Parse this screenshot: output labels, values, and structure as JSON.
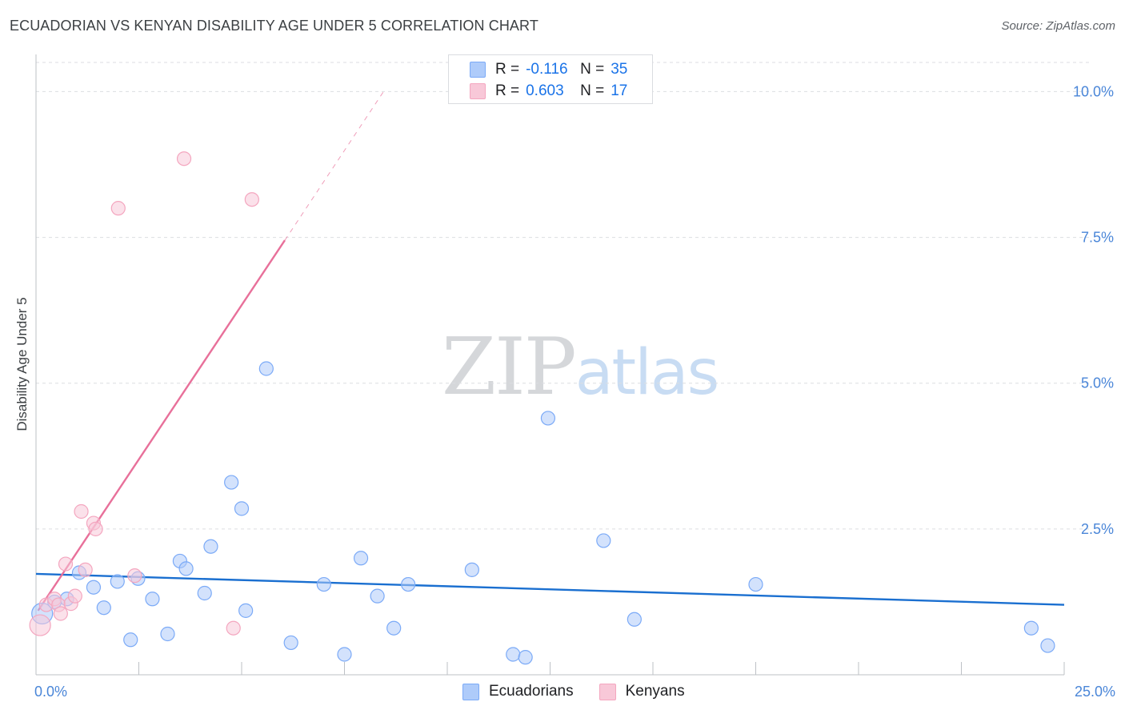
{
  "header": {
    "title": "ECUADORIAN VS KENYAN DISABILITY AGE UNDER 5 CORRELATION CHART",
    "source": "Source: ZipAtlas.com"
  },
  "watermark": {
    "zip": "ZIP",
    "atlas": "atlas"
  },
  "legend": {
    "r_label": "R =",
    "n_label": "N =",
    "series": [
      {
        "name": "Ecuadorians",
        "r": "-0.116",
        "n": "35",
        "fill": "#aecbfa",
        "stroke": "#7baaf7"
      },
      {
        "name": "Kenyans",
        "r": "0.603",
        "n": "17",
        "fill": "#f8c8d8",
        "stroke": "#f4a6bf"
      }
    ]
  },
  "chart_data": {
    "type": "scatter",
    "title": "ECUADORIAN VS KENYAN DISABILITY AGE UNDER 5 CORRELATION CHART",
    "xlabel": "",
    "ylabel": "Disability Age Under 5",
    "xlim": [
      0,
      25
    ],
    "ylim": [
      0,
      10.5
    ],
    "x_tick_labels": [
      {
        "value": 0,
        "label": "0.0%"
      },
      {
        "value": 25,
        "label": "25.0%"
      }
    ],
    "y_tick_labels": [
      {
        "value": 2.5,
        "label": "2.5%"
      },
      {
        "value": 5.0,
        "label": "5.0%"
      },
      {
        "value": 7.5,
        "label": "7.5%"
      },
      {
        "value": 10.0,
        "label": "10.0%"
      }
    ],
    "x_minor_ticks": [
      2.5,
      5,
      7.5,
      10,
      12.5,
      15,
      17.5,
      20,
      22.5,
      25
    ],
    "grid": true,
    "series": [
      {
        "name": "Ecuadorians",
        "color": "#1a6fd0",
        "fill": "#aecbfa",
        "stroke": "#7baaf7",
        "points": [
          [
            0.15,
            1.05
          ],
          [
            0.45,
            1.25
          ],
          [
            0.75,
            1.3
          ],
          [
            1.05,
            1.75
          ],
          [
            1.4,
            1.5
          ],
          [
            1.65,
            1.15
          ],
          [
            1.98,
            1.6
          ],
          [
            2.3,
            0.6
          ],
          [
            2.48,
            1.65
          ],
          [
            2.83,
            1.3
          ],
          [
            3.2,
            0.7
          ],
          [
            3.5,
            1.95
          ],
          [
            3.65,
            1.82
          ],
          [
            4.1,
            1.4
          ],
          [
            4.25,
            2.2
          ],
          [
            4.75,
            3.3
          ],
          [
            5.0,
            2.85
          ],
          [
            5.1,
            1.1
          ],
          [
            5.6,
            5.25
          ],
          [
            6.2,
            0.55
          ],
          [
            7.0,
            1.55
          ],
          [
            7.5,
            0.35
          ],
          [
            7.9,
            2.0
          ],
          [
            8.3,
            1.35
          ],
          [
            8.7,
            0.8
          ],
          [
            9.05,
            1.55
          ],
          [
            10.6,
            1.8
          ],
          [
            11.6,
            0.35
          ],
          [
            11.9,
            0.3
          ],
          [
            12.45,
            4.4
          ],
          [
            13.8,
            2.3
          ],
          [
            14.55,
            0.95
          ],
          [
            17.5,
            1.55
          ],
          [
            24.2,
            0.8
          ],
          [
            24.6,
            0.5
          ]
        ]
      },
      {
        "name": "Kenyans",
        "color": "#e8709a",
        "fill": "#f8c8d8",
        "stroke": "#f4a6bf",
        "points": [
          [
            0.1,
            0.85
          ],
          [
            0.25,
            1.2
          ],
          [
            0.45,
            1.3
          ],
          [
            0.55,
            1.2
          ],
          [
            0.6,
            1.05
          ],
          [
            0.72,
            1.9
          ],
          [
            0.85,
            1.22
          ],
          [
            0.95,
            1.35
          ],
          [
            1.1,
            2.8
          ],
          [
            1.2,
            1.8
          ],
          [
            1.4,
            2.6
          ],
          [
            1.45,
            2.5
          ],
          [
            2.0,
            8.0
          ],
          [
            2.4,
            1.7
          ],
          [
            3.6,
            8.85
          ],
          [
            4.8,
            0.8
          ],
          [
            5.25,
            8.15
          ]
        ]
      }
    ],
    "trendlines": [
      {
        "series": "Ecuadorians",
        "x": [
          0,
          25
        ],
        "y": [
          1.73,
          1.2
        ],
        "style": "solid"
      },
      {
        "series": "Kenyans",
        "x": [
          0.05,
          6.05
        ],
        "y": [
          1.1,
          7.45
        ],
        "style": "solid"
      },
      {
        "series": "Kenyans",
        "x": [
          6.05,
          8.45
        ],
        "y": [
          7.45,
          10.0
        ],
        "style": "dashed"
      }
    ]
  }
}
